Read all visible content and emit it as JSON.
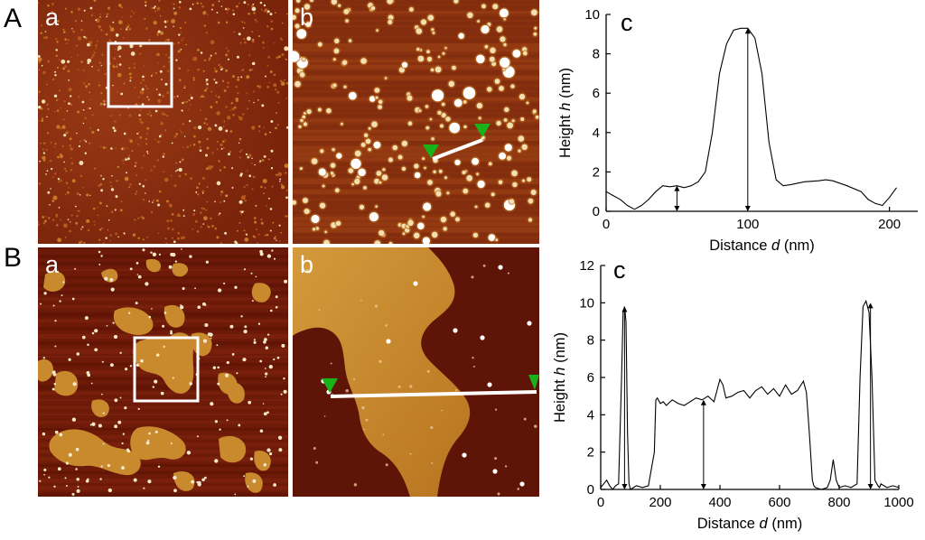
{
  "rows": [
    {
      "label": "A",
      "panels": [
        "a",
        "b",
        "c"
      ]
    },
    {
      "label": "B",
      "panels": [
        "a",
        "b",
        "c"
      ]
    }
  ],
  "colors": {
    "afm_dark": "#6a1608",
    "afm_mid": "#9a3a10",
    "afm_light": "#c47a26",
    "afm_particle": "#f3e0b2",
    "profile_marker": "#19b219",
    "profile_line": "#ffffff",
    "plot_line": "#000000"
  },
  "chart_data": [
    {
      "type": "line",
      "panel": "A.c",
      "title": "",
      "xlabel_prefix": "Distance ",
      "xlabel_var": "d",
      "xlabel_unit": " (nm)",
      "ylabel_prefix": "Height ",
      "ylabel_var": "h",
      "ylabel_unit": " (nm)",
      "xlim": [
        0,
        220
      ],
      "ylim": [
        0,
        10
      ],
      "xticks": [
        0,
        100,
        200
      ],
      "yticks": [
        0,
        2,
        4,
        6,
        8,
        10
      ],
      "series": [
        {
          "x": [
            0,
            5,
            10,
            15,
            20,
            25,
            30,
            35,
            40,
            45,
            50,
            55,
            60,
            65,
            70,
            75,
            80,
            85,
            90,
            95,
            100,
            105,
            110,
            115,
            120,
            125,
            130,
            140,
            150,
            155,
            160,
            170,
            180,
            185,
            190,
            195,
            200,
            205
          ],
          "y": [
            1.0,
            0.8,
            0.6,
            0.3,
            0.1,
            0.3,
            0.6,
            1.0,
            1.3,
            1.25,
            1.3,
            1.2,
            1.3,
            1.5,
            2.0,
            4.0,
            7.0,
            8.5,
            9.2,
            9.3,
            9.3,
            8.8,
            7.0,
            3.5,
            1.6,
            1.3,
            1.35,
            1.5,
            1.55,
            1.6,
            1.55,
            1.3,
            1.0,
            0.6,
            0.4,
            0.3,
            0.7,
            1.2
          ]
        }
      ],
      "arrows": [
        {
          "x": 50,
          "y_top": 1.3
        },
        {
          "x": 100,
          "y_top": 9.3
        }
      ]
    },
    {
      "type": "line",
      "panel": "B.c",
      "title": "",
      "xlabel_prefix": "Distance ",
      "xlabel_var": "d",
      "xlabel_unit": " (nm)",
      "ylabel_prefix": "Height ",
      "ylabel_var": "h",
      "ylabel_unit": " (nm)",
      "xlim": [
        0,
        1000
      ],
      "ylim": [
        0,
        12
      ],
      "xticks": [
        0,
        200,
        400,
        600,
        800,
        1000
      ],
      "yticks": [
        0,
        2,
        4,
        6,
        8,
        10,
        12
      ],
      "series": [
        {
          "x": [
            0,
            10,
            20,
            30,
            40,
            50,
            60,
            70,
            75,
            80,
            85,
            90,
            95,
            100,
            110,
            120,
            140,
            160,
            180,
            185,
            190,
            200,
            210,
            220,
            240,
            260,
            280,
            300,
            320,
            340,
            360,
            380,
            400,
            410,
            420,
            440,
            460,
            480,
            500,
            520,
            540,
            560,
            580,
            600,
            620,
            640,
            660,
            680,
            690,
            700,
            710,
            715,
            720,
            740,
            760,
            770,
            780,
            790,
            800,
            820,
            840,
            860,
            870,
            880,
            890,
            900,
            910,
            920,
            930,
            935,
            940,
            960,
            980,
            1000
          ],
          "y": [
            0.1,
            0.3,
            0.5,
            0.2,
            0.0,
            0.2,
            0.3,
            6.0,
            9.5,
            9.8,
            9.0,
            3.0,
            0.3,
            0.0,
            0.1,
            0.2,
            0.1,
            0.2,
            2.0,
            4.8,
            4.9,
            4.6,
            4.7,
            4.5,
            4.8,
            4.6,
            4.5,
            4.7,
            4.9,
            4.8,
            5.0,
            4.7,
            5.9,
            5.6,
            4.9,
            5.0,
            5.2,
            5.3,
            4.9,
            5.3,
            5.5,
            5.1,
            5.4,
            5.0,
            5.6,
            5.1,
            5.3,
            5.8,
            5.2,
            3.0,
            0.5,
            0.2,
            0.1,
            0.0,
            0.1,
            0.5,
            1.6,
            0.5,
            0.1,
            0.2,
            0.1,
            0.3,
            6.0,
            9.8,
            10.1,
            9.5,
            6.0,
            0.5,
            0.2,
            0.1,
            0.3,
            0.1,
            0.2,
            0.1
          ]
        }
      ],
      "arrows": [
        {
          "x": 80,
          "y_top": 9.8
        },
        {
          "x": 345,
          "y_top": 4.8
        },
        {
          "x": 905,
          "y_top": 10.0
        }
      ]
    }
  ]
}
